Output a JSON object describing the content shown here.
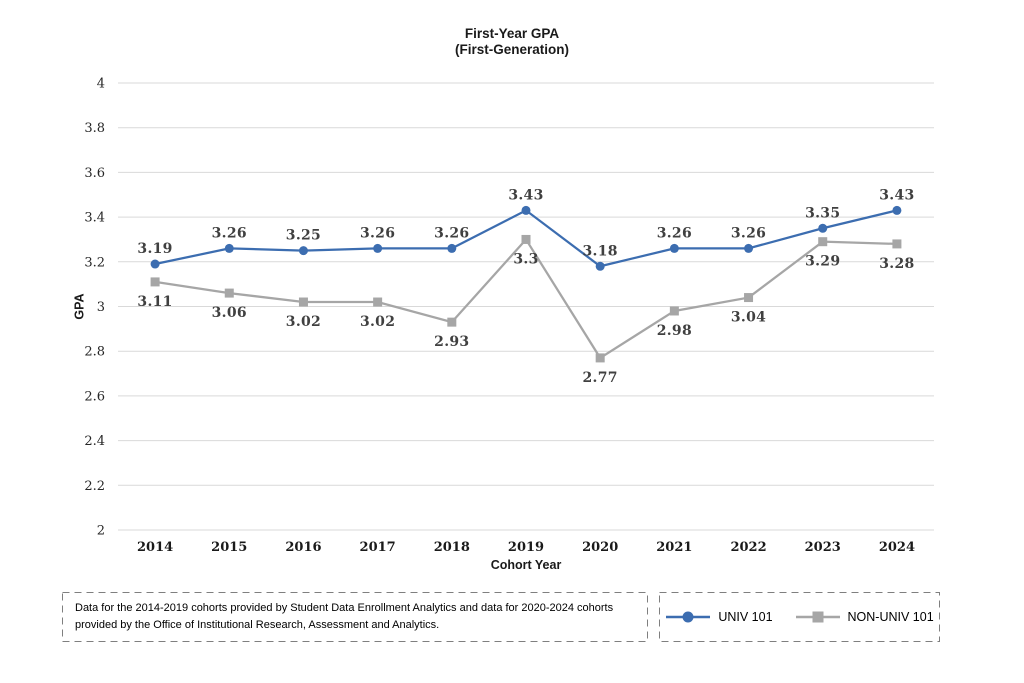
{
  "chart_data": {
    "type": "line",
    "title": "First-Year GPA",
    "subtitle": "(First-Generation)",
    "xlabel": "Cohort Year",
    "ylabel": "GPA",
    "categories": [
      "2014",
      "2015",
      "2016",
      "2017",
      "2018",
      "2019",
      "2020",
      "2021",
      "2022",
      "2023",
      "2024"
    ],
    "series": [
      {
        "name": "UNIV 101",
        "color": "#3C6DB0",
        "marker": "circle",
        "label_position": "above",
        "values": [
          3.19,
          3.26,
          3.25,
          3.26,
          3.26,
          3.43,
          3.18,
          3.26,
          3.26,
          3.35,
          3.43
        ]
      },
      {
        "name": "NON-UNIV 101",
        "color": "#A6A6A6",
        "marker": "square",
        "label_position": "below",
        "values": [
          3.11,
          3.06,
          3.02,
          3.02,
          2.93,
          3.3,
          2.77,
          2.98,
          3.04,
          3.29,
          3.28
        ]
      }
    ],
    "ylim": [
      2,
      4
    ],
    "ytick_step": 0.2,
    "grid": "horizontal",
    "gridline_color": "#D9D9D9",
    "data_label_color": "#404040",
    "legend_position": "bottom-right"
  },
  "footnote": "Data for the 2014-2019 cohorts provided by Student Data Enrollment Analytics and data for 2020-2024 cohorts provided by the Office of Institutional Research, Assessment and Analytics."
}
